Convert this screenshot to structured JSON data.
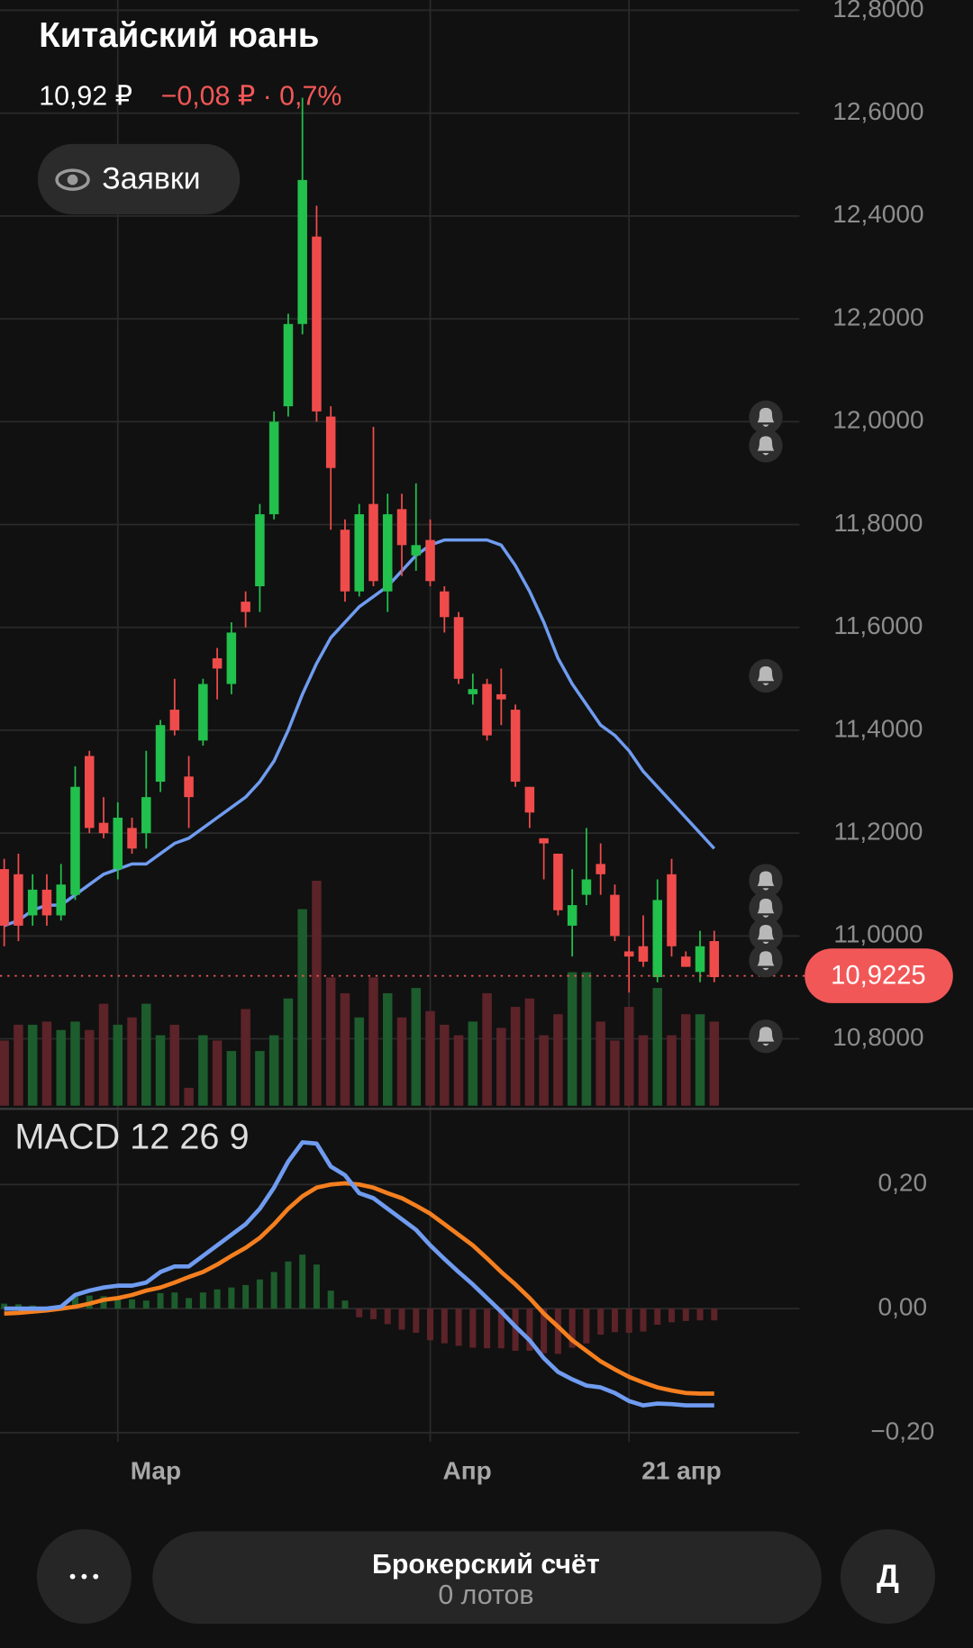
{
  "header": {
    "title": "Китайский юань",
    "price": "10,92 ₽",
    "change": "−0,08 ₽ · 0,7%",
    "orders_button": "Заявки"
  },
  "chart_data": {
    "type": "candlestick",
    "categories": [
      null,
      null,
      null,
      null,
      null,
      null,
      null,
      null,
      "Мар",
      null,
      null,
      null,
      null,
      null,
      null,
      null,
      null,
      null,
      null,
      null,
      null,
      null,
      null,
      null,
      null,
      null,
      null,
      null,
      null,
      null,
      "Апр",
      null,
      null,
      null,
      null,
      null,
      null,
      null,
      null,
      null,
      null,
      null,
      null,
      null,
      "21 апр",
      null,
      null,
      null,
      null,
      null,
      null
    ],
    "open": [
      11.13,
      11.12,
      11.04,
      11.09,
      11.04,
      11.08,
      11.35,
      11.22,
      11.13,
      11.21,
      11.2,
      11.3,
      11.44,
      11.31,
      11.38,
      11.54,
      11.49,
      11.65,
      11.68,
      11.82,
      12.03,
      12.19,
      12.36,
      12.01,
      11.79,
      11.67,
      11.84,
      11.67,
      11.83,
      11.74,
      11.77,
      11.67,
      11.62,
      11.47,
      11.49,
      11.47,
      11.44,
      11.29,
      11.19,
      11.16,
      11.02,
      11.08,
      11.14,
      11.08,
      10.97,
      10.98,
      10.92,
      11.12,
      10.96,
      10.93,
      10.99
    ],
    "high": [
      11.15,
      11.16,
      11.12,
      11.12,
      11.14,
      11.33,
      11.36,
      11.27,
      11.26,
      11.23,
      11.36,
      11.42,
      11.5,
      11.35,
      11.5,
      11.56,
      11.61,
      11.67,
      11.84,
      12.02,
      12.21,
      12.63,
      12.42,
      12.03,
      11.81,
      11.84,
      11.99,
      11.86,
      11.86,
      11.88,
      11.81,
      11.68,
      11.63,
      11.51,
      11.5,
      11.52,
      11.45,
      11.29,
      11.19,
      11.16,
      11.13,
      11.21,
      11.18,
      11.1,
      11.0,
      11.04,
      11.11,
      11.15,
      10.97,
      11.01,
      11.01
    ],
    "low": [
      10.98,
      10.99,
      11.02,
      11.02,
      11.03,
      11.07,
      11.2,
      11.19,
      11.11,
      11.16,
      11.17,
      11.28,
      11.39,
      11.21,
      11.37,
      11.46,
      11.47,
      11.6,
      11.63,
      11.81,
      12.01,
      12.17,
      12.0,
      11.79,
      11.65,
      11.66,
      11.68,
      11.63,
      11.7,
      11.71,
      11.68,
      11.59,
      11.49,
      11.45,
      11.38,
      11.41,
      11.29,
      11.21,
      11.11,
      11.04,
      10.96,
      11.06,
      11.08,
      10.99,
      10.89,
      10.94,
      10.91,
      10.96,
      10.94,
      10.91,
      10.91
    ],
    "close": [
      11.02,
      11.02,
      11.09,
      11.04,
      11.1,
      11.29,
      11.21,
      11.2,
      11.23,
      11.17,
      11.27,
      11.41,
      11.4,
      11.27,
      11.49,
      11.52,
      11.59,
      11.63,
      11.82,
      12.0,
      12.19,
      12.47,
      12.02,
      11.91,
      11.67,
      11.82,
      11.69,
      11.82,
      11.76,
      11.76,
      11.69,
      11.62,
      11.5,
      11.48,
      11.39,
      11.46,
      11.3,
      11.24,
      11.18,
      11.05,
      11.06,
      11.11,
      11.12,
      11.0,
      10.96,
      10.95,
      11.07,
      10.98,
      10.94,
      10.98,
      10.92
    ],
    "up_color": "#22c04c",
    "down_color": "#f04b4b",
    "ylim": [
      10.67,
      12.82
    ],
    "yticks": [
      {
        "value": 10.8,
        "label": "10,8000"
      },
      {
        "value": 11.0,
        "label": "11,0000"
      },
      {
        "value": 11.2,
        "label": "11,2000"
      },
      {
        "value": 11.4,
        "label": "11,4000"
      },
      {
        "value": 11.6,
        "label": "11,6000"
      },
      {
        "value": 11.8,
        "label": "11,8000"
      },
      {
        "value": 12.0,
        "label": "12,0000"
      },
      {
        "value": 12.2,
        "label": "12,2000"
      },
      {
        "value": 12.4,
        "label": "12,4000"
      },
      {
        "value": 12.6,
        "label": "12,6000"
      },
      {
        "value": 12.8,
        "label": "12,8000"
      }
    ],
    "grid": true,
    "last_price": {
      "value": 10.9225,
      "label": "10,9225",
      "color": "#f25757"
    },
    "moving_average": {
      "color": "#6f9cf0",
      "values": [
        11.02,
        11.03,
        11.05,
        11.06,
        11.06,
        11.08,
        11.1,
        11.12,
        11.13,
        11.14,
        11.14,
        11.16,
        11.18,
        11.19,
        11.21,
        11.23,
        11.25,
        11.27,
        11.3,
        11.34,
        11.4,
        11.47,
        11.53,
        11.58,
        11.61,
        11.64,
        11.66,
        11.68,
        11.71,
        11.74,
        11.76,
        11.77,
        11.77,
        11.77,
        11.77,
        11.76,
        11.72,
        11.67,
        11.61,
        11.54,
        11.49,
        11.45,
        11.41,
        11.39,
        11.36,
        11.32,
        11.29,
        11.26,
        11.23,
        11.2,
        11.17
      ]
    },
    "volume": {
      "ylim": [
        0,
        250
      ],
      "up_color": "#1d5c2c",
      "down_color": "#5c2329",
      "values": [
        62,
        77,
        77,
        80,
        72,
        80,
        72,
        97,
        77,
        84,
        97,
        67,
        77,
        17,
        67,
        62,
        52,
        92,
        52,
        67,
        102,
        187,
        214,
        122,
        107,
        84,
        122,
        107,
        84,
        112,
        90,
        77,
        67,
        80,
        107,
        74,
        94,
        102,
        67,
        87,
        127,
        127,
        80,
        62,
        94,
        67,
        112,
        67,
        87,
        87,
        80
      ]
    },
    "macd": {
      "title": "MACD 12 26 9",
      "ylim": [
        -0.215,
        0.322
      ],
      "yticks": [
        {
          "value": 0.2,
          "label": "0,20"
        },
        {
          "value": 0,
          "label": "0,00"
        },
        {
          "value": -0.2,
          "label": "−0,20"
        }
      ],
      "macd": {
        "color": "#6f9cf0",
        "values": [
          0,
          0,
          0,
          0,
          0.003,
          0.022,
          0.029,
          0.034,
          0.037,
          0.037,
          0.042,
          0.059,
          0.068,
          0.068,
          0.085,
          0.102,
          0.119,
          0.136,
          0.161,
          0.195,
          0.237,
          0.268,
          0.266,
          0.229,
          0.215,
          0.186,
          0.178,
          0.161,
          0.144,
          0.127,
          0.102,
          0.08,
          0.059,
          0.039,
          0.017,
          -0.005,
          -0.029,
          -0.051,
          -0.08,
          -0.102,
          -0.114,
          -0.124,
          -0.127,
          -0.136,
          -0.149,
          -0.156,
          -0.153,
          -0.154,
          -0.156,
          -0.156,
          -0.156
        ]
      },
      "signal": {
        "color": "#f57f1f",
        "values": [
          -0.008,
          -0.007,
          -0.005,
          -0.003,
          0,
          0.003,
          0.008,
          0.014,
          0.017,
          0.022,
          0.029,
          0.034,
          0.042,
          0.051,
          0.059,
          0.071,
          0.085,
          0.098,
          0.114,
          0.136,
          0.161,
          0.181,
          0.195,
          0.2,
          0.202,
          0.2,
          0.195,
          0.186,
          0.178,
          0.166,
          0.153,
          0.136,
          0.119,
          0.102,
          0.081,
          0.059,
          0.039,
          0.017,
          -0.008,
          -0.029,
          -0.051,
          -0.068,
          -0.085,
          -0.098,
          -0.11,
          -0.119,
          -0.127,
          -0.132,
          -0.136,
          -0.137,
          -0.137
        ]
      },
      "histogram": {
        "up_color": "#1d5c2c",
        "down_color": "#5c2329",
        "values": [
          0.008,
          0.007,
          0.005,
          0.003,
          0.003,
          0.019,
          0.021,
          0.02,
          0.02,
          0.015,
          0.013,
          0.025,
          0.026,
          0.017,
          0.026,
          0.031,
          0.034,
          0.038,
          0.047,
          0.059,
          0.076,
          0.087,
          0.071,
          0.029,
          0.013,
          -0.014,
          -0.017,
          -0.025,
          -0.034,
          -0.039,
          -0.051,
          -0.056,
          -0.06,
          -0.063,
          -0.064,
          -0.064,
          -0.068,
          -0.068,
          -0.072,
          -0.073,
          -0.063,
          -0.056,
          -0.042,
          -0.038,
          -0.039,
          -0.037,
          -0.026,
          -0.022,
          -0.02,
          -0.019,
          -0.019
        ]
      }
    }
  },
  "bottom_bar": {
    "account": "Брокерский счёт",
    "lots": "0 лотов",
    "profile": "Д"
  }
}
